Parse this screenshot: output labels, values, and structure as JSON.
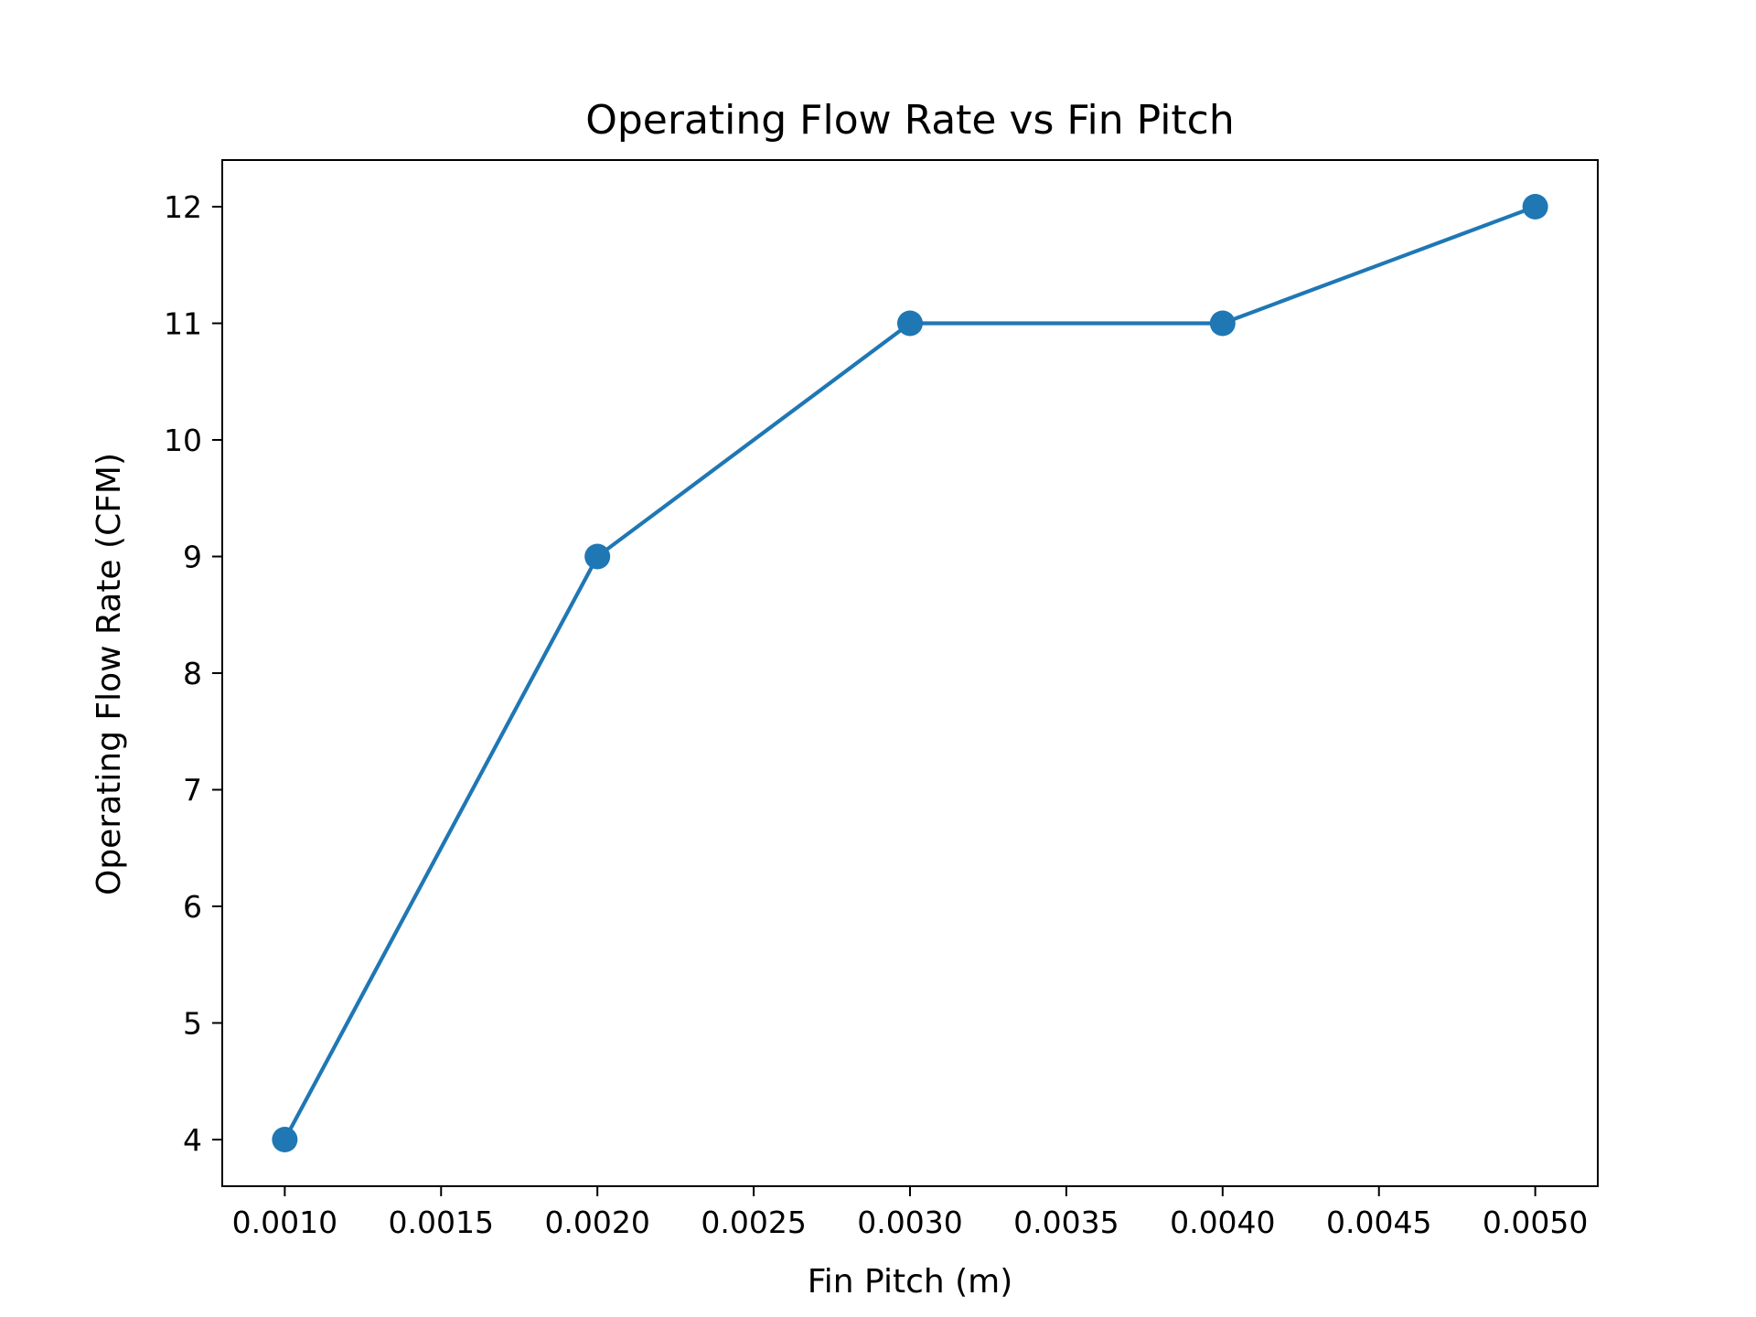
{
  "chart_data": {
    "type": "line",
    "title": "Operating Flow Rate vs Fin Pitch",
    "xlabel": "Fin Pitch (m)",
    "ylabel": "Operating Flow Rate (CFM)",
    "x": [
      0.001,
      0.002,
      0.003,
      0.004,
      0.005
    ],
    "series": [
      {
        "values": [
          4,
          9,
          11,
          11,
          12
        ],
        "color": "#1f77b4",
        "marker": "circle"
      }
    ],
    "xlim": [
      0.0008,
      0.0052
    ],
    "ylim": [
      3.6,
      12.4
    ],
    "xticks": [
      0.001,
      0.0015,
      0.002,
      0.0025,
      0.003,
      0.0035,
      0.004,
      0.0045,
      0.005
    ],
    "xtick_labels": [
      "0.0010",
      "0.0015",
      "0.0020",
      "0.0025",
      "0.0030",
      "0.0035",
      "0.0040",
      "0.0045",
      "0.0050"
    ],
    "yticks": [
      4,
      5,
      6,
      7,
      8,
      9,
      10,
      11,
      12
    ],
    "ytick_labels": [
      "4",
      "5",
      "6",
      "7",
      "8",
      "9",
      "10",
      "11",
      "12"
    ],
    "grid": false,
    "legend": "none"
  }
}
